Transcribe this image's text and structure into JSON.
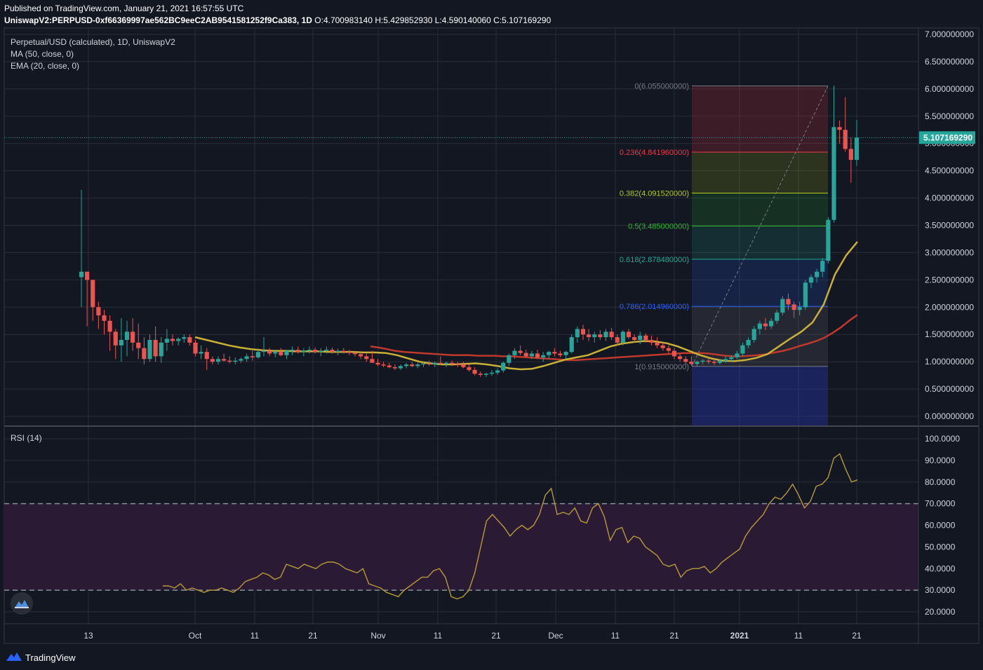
{
  "header": {
    "published": "Published on TradingView.com, January 21, 2021 16:57:55 UTC",
    "symbol": "UniswapV2:PERPUSD-0xf66369997ae562BC9eeC2AB9541581252f9Ca383, 1D",
    "ohlc": "O:4.700983140 H:5.429852930 L:4.590140060 C:5.107169290"
  },
  "legend": {
    "title": "Perpetual/USD (calculated), 1D, UniswapV2",
    "ma": "MA (50, close, 0)",
    "ema": "EMA (20, close, 0)",
    "rsi": "RSI (14)"
  },
  "price_label": "5.107169290",
  "brand": "TradingView",
  "colors": {
    "background": "#131722",
    "up": "#26a69a",
    "down": "#ef5350",
    "ma": "#c0392b",
    "ema": "#c9b037",
    "rsi": "#b89a3a",
    "rsi_band": "#2a1a33"
  },
  "icons": {
    "brand": "tradingview-logo-icon",
    "fab": "tradingview-cloud-icon"
  },
  "chart_data": [
    {
      "type": "candlestick",
      "title": "Perpetual/USD (calculated), 1D, UniswapV2",
      "x_ticks": [
        "13",
        "Oct",
        "11",
        "21",
        "Nov",
        "11",
        "21",
        "Dec",
        "11",
        "21",
        "2021",
        "11",
        "21"
      ],
      "y_ticks": [
        "0.000000000",
        "0.500000000",
        "1.000000000",
        "1.500000000",
        "2.000000000",
        "2.500000000",
        "3.000000000",
        "3.500000000",
        "4.000000000",
        "4.500000000",
        "5.000000000",
        "5.500000000",
        "6.000000000",
        "6.500000000",
        "7.000000000"
      ],
      "ylim": [
        0,
        7
      ],
      "last_price": 5.10716929,
      "candles_ohlc": [
        [
          2.55,
          4.15,
          2.0,
          2.65
        ],
        [
          2.65,
          2.65,
          1.65,
          2.5
        ],
        [
          2.5,
          2.5,
          1.75,
          2.0
        ],
        [
          2.0,
          2.1,
          1.6,
          1.85
        ],
        [
          1.85,
          1.95,
          1.5,
          1.75
        ],
        [
          1.75,
          1.85,
          1.2,
          1.55
        ],
        [
          1.55,
          1.6,
          1.05,
          1.3
        ],
        [
          1.3,
          1.8,
          1.0,
          1.4
        ],
        [
          1.4,
          1.75,
          1.1,
          1.55
        ],
        [
          1.55,
          1.8,
          1.2,
          1.35
        ],
        [
          1.35,
          1.7,
          1.05,
          1.25
        ],
        [
          1.25,
          1.45,
          0.95,
          1.05
        ],
        [
          1.05,
          1.5,
          1.0,
          1.4
        ],
        [
          1.4,
          1.65,
          1.0,
          1.1
        ],
        [
          1.1,
          1.45,
          0.98,
          1.35
        ],
        [
          1.35,
          1.6,
          1.2,
          1.42
        ],
        [
          1.42,
          1.5,
          1.3,
          1.38
        ],
        [
          1.38,
          1.45,
          1.3,
          1.42
        ],
        [
          1.42,
          1.5,
          1.35,
          1.45
        ],
        [
          1.45,
          1.5,
          1.3,
          1.35
        ],
        [
          1.35,
          1.4,
          1.1,
          1.15
        ],
        [
          1.15,
          1.3,
          1.05,
          1.18
        ],
        [
          1.18,
          1.25,
          0.85,
          1.05
        ],
        [
          1.05,
          1.1,
          0.95,
          1.0
        ],
        [
          1.0,
          1.1,
          0.95,
          1.05
        ],
        [
          1.05,
          1.15,
          1.0,
          1.02
        ],
        [
          1.02,
          1.1,
          0.97,
          1.0
        ],
        [
          1.0,
          1.08,
          0.95,
          1.02
        ],
        [
          1.02,
          1.08,
          0.98,
          1.05
        ],
        [
          1.05,
          1.15,
          1.0,
          1.1
        ],
        [
          1.1,
          1.2,
          1.02,
          1.08
        ],
        [
          1.08,
          1.25,
          1.05,
          1.18
        ],
        [
          1.18,
          1.45,
          1.1,
          1.2
        ],
        [
          1.2,
          1.25,
          1.1,
          1.15
        ],
        [
          1.15,
          1.22,
          1.08,
          1.18
        ],
        [
          1.18,
          1.25,
          1.1,
          1.12
        ],
        [
          1.12,
          1.22,
          1.05,
          1.2
        ],
        [
          1.2,
          1.28,
          1.12,
          1.22
        ],
        [
          1.22,
          1.28,
          1.15,
          1.18
        ],
        [
          1.18,
          1.25,
          1.1,
          1.2
        ],
        [
          1.2,
          1.28,
          1.15,
          1.22
        ],
        [
          1.22,
          1.26,
          1.15,
          1.18
        ],
        [
          1.18,
          1.25,
          1.1,
          1.2
        ],
        [
          1.2,
          1.28,
          1.15,
          1.22
        ],
        [
          1.22,
          1.26,
          1.15,
          1.18
        ],
        [
          1.18,
          1.24,
          1.12,
          1.2
        ],
        [
          1.2,
          1.25,
          1.15,
          1.18
        ],
        [
          1.18,
          1.22,
          1.12,
          1.16
        ],
        [
          1.16,
          1.2,
          1.1,
          1.14
        ],
        [
          1.14,
          1.18,
          1.05,
          1.1
        ],
        [
          1.1,
          1.15,
          1.0,
          1.05
        ],
        [
          1.05,
          1.2,
          1.0,
          0.98
        ],
        [
          0.98,
          1.05,
          0.92,
          0.95
        ],
        [
          0.95,
          1.0,
          0.9,
          0.93
        ],
        [
          0.93,
          0.98,
          0.88,
          0.9
        ],
        [
          0.9,
          0.95,
          0.85,
          0.88
        ],
        [
          0.88,
          0.95,
          0.85,
          0.92
        ],
        [
          0.92,
          0.98,
          0.88,
          0.95
        ],
        [
          0.95,
          1.0,
          0.9,
          0.92
        ],
        [
          0.92,
          0.98,
          0.88,
          0.95
        ],
        [
          0.95,
          1.0,
          0.9,
          0.97
        ],
        [
          0.97,
          1.02,
          0.92,
          0.95
        ],
        [
          0.95,
          1.0,
          0.9,
          0.98
        ],
        [
          0.98,
          1.1,
          0.94,
          0.96
        ],
        [
          0.96,
          1.0,
          0.9,
          0.98
        ],
        [
          0.98,
          1.02,
          0.92,
          0.96
        ],
        [
          0.96,
          1.0,
          0.9,
          0.95
        ],
        [
          0.95,
          1.0,
          0.88,
          0.9
        ],
        [
          0.9,
          0.95,
          0.82,
          0.85
        ],
        [
          0.85,
          0.9,
          0.75,
          0.78
        ],
        [
          0.78,
          0.82,
          0.72,
          0.76
        ],
        [
          0.76,
          0.8,
          0.72,
          0.78
        ],
        [
          0.78,
          0.85,
          0.74,
          0.8
        ],
        [
          0.8,
          0.88,
          0.76,
          0.84
        ],
        [
          0.84,
          1.0,
          0.8,
          0.98
        ],
        [
          0.98,
          1.15,
          0.92,
          1.12
        ],
        [
          1.12,
          1.25,
          1.05,
          1.2
        ],
        [
          1.2,
          1.3,
          1.12,
          1.16
        ],
        [
          1.16,
          1.22,
          1.08,
          1.1
        ],
        [
          1.1,
          1.2,
          1.05,
          1.15
        ],
        [
          1.15,
          1.22,
          1.05,
          1.08
        ],
        [
          1.08,
          1.18,
          1.0,
          1.12
        ],
        [
          1.12,
          1.2,
          1.05,
          1.18
        ],
        [
          1.18,
          1.25,
          1.1,
          1.15
        ],
        [
          1.15,
          1.2,
          1.08,
          1.12
        ],
        [
          1.12,
          1.2,
          1.05,
          1.18
        ],
        [
          1.18,
          1.5,
          1.15,
          1.45
        ],
        [
          1.45,
          1.65,
          1.35,
          1.6
        ],
        [
          1.6,
          1.68,
          1.4,
          1.5
        ],
        [
          1.5,
          1.6,
          1.38,
          1.45
        ],
        [
          1.45,
          1.55,
          1.35,
          1.5
        ],
        [
          1.5,
          1.58,
          1.4,
          1.45
        ],
        [
          1.45,
          1.6,
          1.38,
          1.55
        ],
        [
          1.55,
          1.62,
          1.4,
          1.45
        ],
        [
          1.45,
          1.5,
          1.3,
          1.35
        ],
        [
          1.35,
          1.58,
          1.3,
          1.55
        ],
        [
          1.55,
          1.6,
          1.42,
          1.45
        ],
        [
          1.45,
          1.5,
          1.35,
          1.4
        ],
        [
          1.4,
          1.55,
          1.32,
          1.48
        ],
        [
          1.48,
          1.52,
          1.35,
          1.4
        ],
        [
          1.4,
          1.48,
          1.3,
          1.35
        ],
        [
          1.35,
          1.45,
          1.25,
          1.3
        ],
        [
          1.3,
          1.35,
          1.2,
          1.25
        ],
        [
          1.25,
          1.3,
          1.15,
          1.2
        ],
        [
          1.2,
          1.25,
          1.05,
          1.1
        ],
        [
          1.1,
          1.15,
          1.0,
          1.05
        ],
        [
          1.05,
          1.1,
          0.95,
          1.0
        ],
        [
          1.0,
          1.1,
          0.93,
          0.96
        ],
        [
          0.96,
          1.02,
          0.92,
          1.0
        ],
        [
          1.0,
          1.05,
          0.95,
          1.02
        ],
        [
          1.02,
          1.08,
          0.96,
          1.0
        ],
        [
          1.0,
          1.05,
          0.94,
          0.98
        ],
        [
          0.98,
          1.05,
          0.95,
          1.02
        ],
        [
          1.02,
          1.1,
          0.98,
          1.05
        ],
        [
          1.05,
          1.12,
          1.0,
          1.08
        ],
        [
          1.08,
          1.2,
          1.05,
          1.15
        ],
        [
          1.15,
          1.35,
          1.1,
          1.3
        ],
        [
          1.3,
          1.45,
          1.25,
          1.4
        ],
        [
          1.4,
          1.65,
          1.35,
          1.6
        ],
        [
          1.6,
          1.75,
          1.5,
          1.7
        ],
        [
          1.7,
          1.8,
          1.58,
          1.65
        ],
        [
          1.65,
          1.8,
          1.6,
          1.75
        ],
        [
          1.75,
          1.95,
          1.7,
          1.9
        ],
        [
          1.9,
          2.2,
          1.85,
          2.15
        ],
        [
          2.15,
          2.25,
          1.95,
          2.05
        ],
        [
          2.05,
          2.1,
          1.8,
          1.95
        ],
        [
          1.95,
          2.1,
          1.85,
          2.0
        ],
        [
          2.0,
          2.5,
          1.95,
          2.45
        ],
        [
          2.45,
          2.6,
          2.35,
          2.55
        ],
        [
          2.55,
          2.7,
          2.45,
          2.65
        ],
        [
          2.65,
          2.9,
          2.55,
          2.85
        ],
        [
          2.85,
          3.65,
          2.8,
          3.6
        ],
        [
          3.6,
          6.06,
          3.55,
          5.3
        ],
        [
          5.3,
          5.42,
          5.0,
          5.25
        ],
        [
          5.25,
          5.85,
          4.85,
          4.9
        ],
        [
          4.9,
          5.1,
          4.28,
          4.7
        ],
        [
          4.7,
          5.43,
          4.59,
          5.107
        ]
      ],
      "ma50": [
        1.28,
        1.26,
        1.23,
        1.2,
        1.18,
        1.17,
        1.16,
        1.15,
        1.14,
        1.13,
        1.12,
        1.12,
        1.12,
        1.11,
        1.11,
        1.11,
        1.1,
        1.1,
        1.09,
        1.08,
        1.07,
        1.06,
        1.05,
        1.04,
        1.03,
        1.03,
        1.04,
        1.05,
        1.06,
        1.07,
        1.08,
        1.09,
        1.1,
        1.11,
        1.12,
        1.13,
        1.14,
        1.15,
        1.16,
        1.16,
        1.16,
        1.15,
        1.13,
        1.11,
        1.1,
        1.1,
        1.11,
        1.12,
        1.14,
        1.17,
        1.2,
        1.24,
        1.29,
        1.33,
        1.38,
        1.44,
        1.53,
        1.63,
        1.75,
        1.86
      ],
      "ema20": [
        1.45,
        1.4,
        1.35,
        1.3,
        1.26,
        1.23,
        1.21,
        1.2,
        1.2,
        1.19,
        1.19,
        1.19,
        1.18,
        1.18,
        1.18,
        1.17,
        1.17,
        1.16,
        1.12,
        1.06,
        1.0,
        0.97,
        0.95,
        0.95,
        0.96,
        0.97,
        0.95,
        0.92,
        0.88,
        0.86,
        0.87,
        0.92,
        0.98,
        1.04,
        1.08,
        1.12,
        1.2,
        1.28,
        1.33,
        1.36,
        1.38,
        1.37,
        1.34,
        1.28,
        1.2,
        1.12,
        1.06,
        1.02,
        1.01,
        1.03,
        1.07,
        1.14,
        1.28,
        1.42,
        1.55,
        1.72,
        2.05,
        2.6,
        2.95,
        3.2
      ],
      "fibonacci": [
        {
          "label": "0(6.055000000)",
          "level": 6.055
        },
        {
          "label": "0.236(4.841960000)",
          "level": 4.84196
        },
        {
          "label": "0.382(4.091520000)",
          "level": 4.09152
        },
        {
          "label": "0.5(3.485000000)",
          "level": 3.485
        },
        {
          "label": "0.618(2.878480000)",
          "level": 2.87848
        },
        {
          "label": "0.786(2.014960000)",
          "level": 2.01496
        },
        {
          "label": "1(0.915000000)",
          "level": 0.915
        }
      ]
    },
    {
      "type": "line",
      "title": "RSI (14)",
      "y_ticks": [
        "20.0000",
        "30.0000",
        "40.0000",
        "50.0000",
        "60.0000",
        "70.0000",
        "80.0000",
        "90.0000",
        "100.0000"
      ],
      "ylim": [
        15,
        103
      ],
      "bands": [
        30,
        70
      ],
      "values": [
        32,
        32,
        31,
        33,
        30,
        31,
        30,
        29,
        30,
        30,
        31,
        30,
        29,
        31,
        34,
        35,
        36,
        38,
        37,
        35,
        36,
        42,
        41,
        40,
        42,
        41,
        40,
        42,
        43,
        43,
        42,
        40,
        39,
        38,
        40,
        33,
        32,
        31,
        29,
        28,
        27,
        30,
        32,
        34,
        36,
        36,
        39,
        40,
        36,
        27,
        26,
        27,
        30,
        38,
        50,
        62,
        65,
        62,
        59,
        55,
        58,
        60,
        58,
        60,
        65,
        74,
        77,
        65,
        66,
        65,
        68,
        62,
        61,
        68,
        70,
        64,
        53,
        58,
        59,
        52,
        55,
        54,
        50,
        48,
        46,
        42,
        41,
        42,
        36,
        39,
        40,
        40,
        41,
        38,
        40,
        43,
        45,
        47,
        49,
        55,
        59,
        62,
        65,
        70,
        73,
        72,
        75,
        79,
        74,
        68,
        71,
        78,
        79,
        82,
        91,
        93,
        86,
        80,
        81
      ]
    }
  ]
}
